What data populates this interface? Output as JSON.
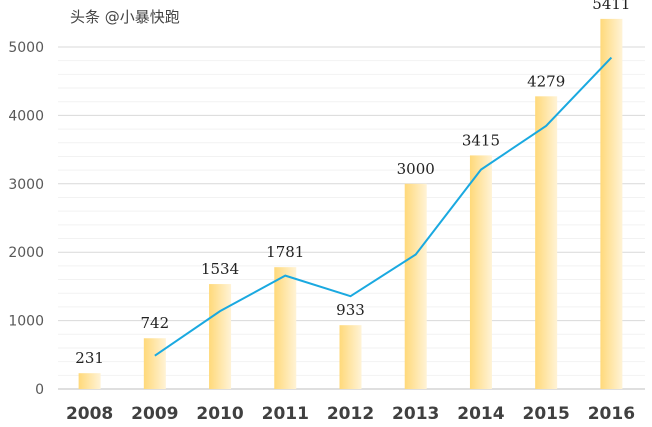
{
  "chart_data": {
    "type": "bar",
    "categories": [
      "2008",
      "2009",
      "2010",
      "2011",
      "2012",
      "2013",
      "2014",
      "2015",
      "2016"
    ],
    "series": [
      {
        "type": "bar",
        "values": [
          231,
          742,
          1534,
          1781,
          933,
          3000,
          3415,
          4279,
          5411
        ],
        "color": "#FFD97A",
        "data_labels": true
      },
      {
        "type": "line",
        "values": [
          null,
          486.5,
          1138,
          1657.5,
          1357,
          1966.5,
          3207.5,
          3847,
          4845
        ],
        "color": "#1AA9E0"
      }
    ],
    "ylim": [
      0,
      5000
    ],
    "yticks": [
      0,
      1000,
      2000,
      3000,
      4000,
      5000
    ],
    "grid": true,
    "title": "",
    "xlabel": "",
    "ylabel": ""
  },
  "watermark": "头条 @小暴快跑"
}
